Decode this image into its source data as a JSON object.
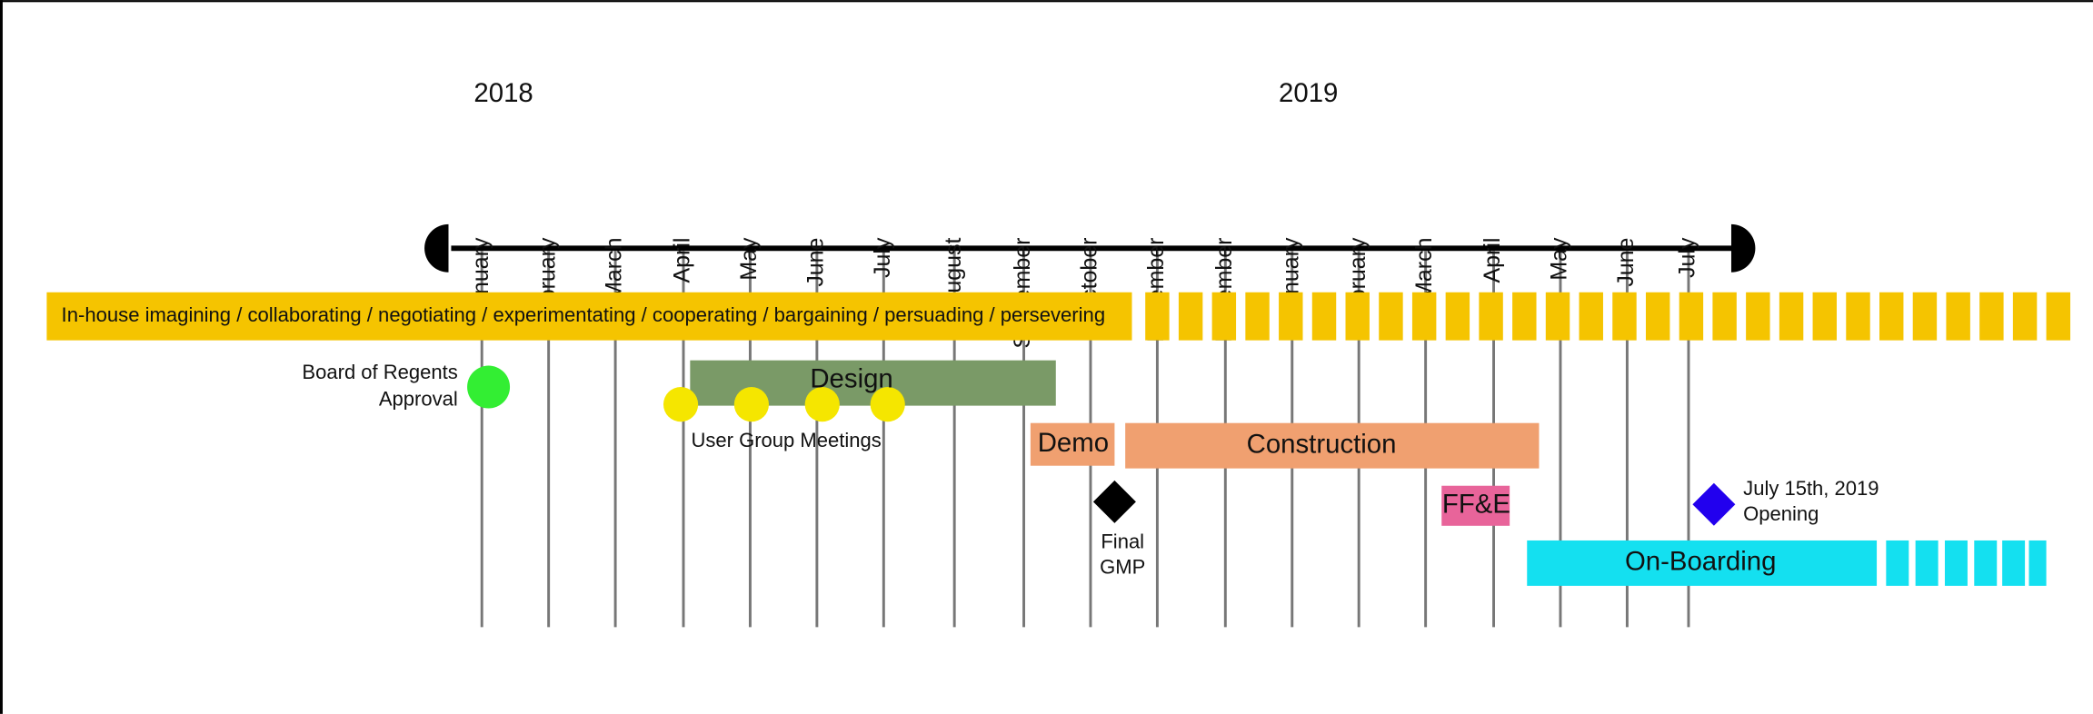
{
  "years": [
    "2018",
    "2019"
  ],
  "months": [
    "January",
    "February",
    "March",
    "April",
    "May",
    "June",
    "July",
    "August",
    "September",
    "October",
    "November",
    "December",
    "January",
    "February",
    "March",
    "April",
    "May",
    "June",
    "July"
  ],
  "activities": [
    {
      "label": "In-house  imagining / collaborating / negotiating / experimentating / cooperating / bargaining / persuading / persevering"
    },
    {
      "label": "Design"
    },
    {
      "label": "Demo"
    },
    {
      "label": "Construction"
    },
    {
      "label": "FF&E"
    },
    {
      "label": "On-Boarding"
    }
  ],
  "milestones": [
    {
      "label": [
        "Board of Regents",
        "Approval"
      ]
    },
    {
      "label": [
        "User Group Meetings"
      ]
    },
    {
      "label": [
        "Final",
        "GMP"
      ]
    },
    {
      "label": [
        "July 15th, 2019",
        "Opening"
      ]
    }
  ]
}
